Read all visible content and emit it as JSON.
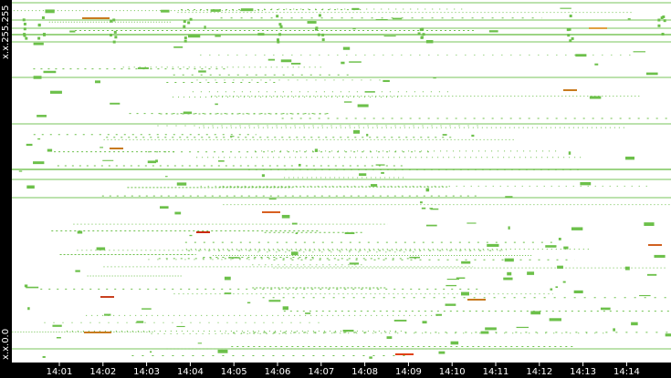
{
  "chart_data": {
    "type": "traffic",
    "y_labels": [
      "x.x.255.255",
      "x.x.0.0"
    ],
    "x_labels": [
      "14:01",
      "14:02",
      "14:03",
      "14:04",
      "14:05",
      "14:06",
      "14:07",
      "14:08",
      "14:09",
      "14:10",
      "14:11",
      "14:12",
      "14:13",
      "14:14"
    ]
  }
}
